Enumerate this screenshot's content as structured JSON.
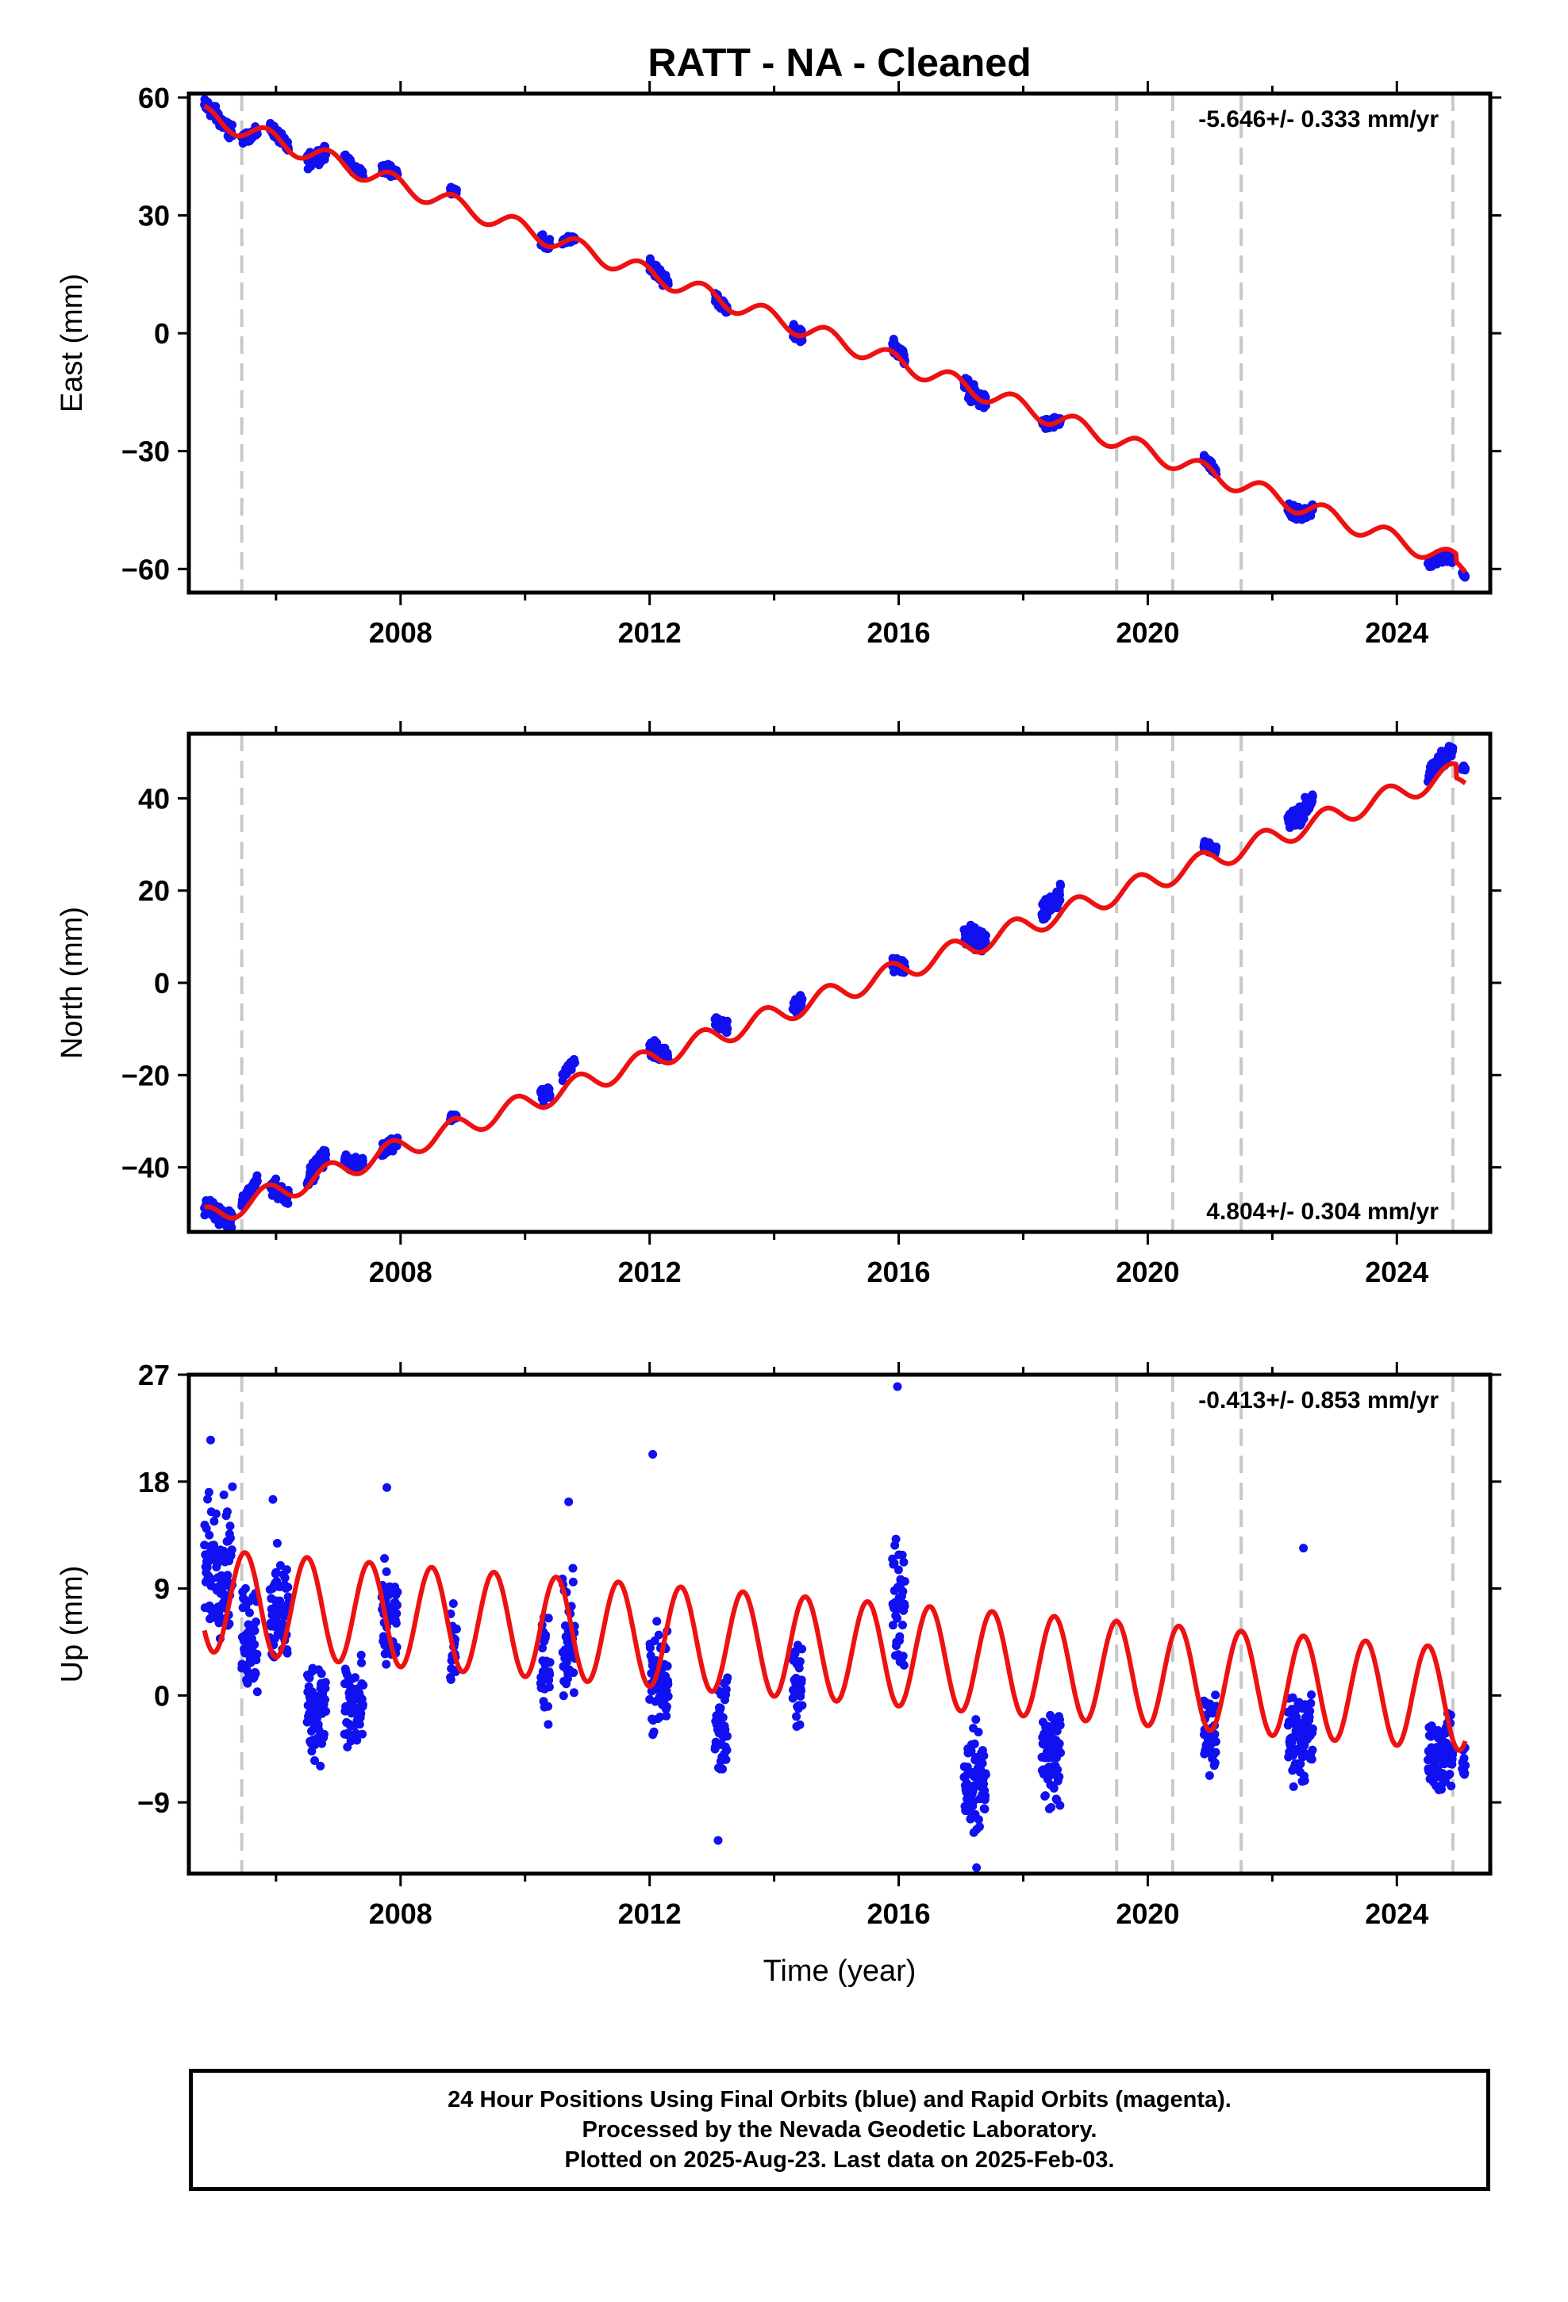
{
  "title": "RATT  - NA - Cleaned",
  "xlabel": "Time (year)",
  "footer": {
    "line1": "24 Hour Positions Using Final Orbits (blue) and Rapid Orbits (magenta).",
    "line2": "Processed by the Nevada Geodetic Laboratory.",
    "line3": "Plotted on 2025-Aug-23. Last data on 2025-Feb-03."
  },
  "colors": {
    "data": "#1010f0",
    "model": "#ee1111",
    "break": "#c8c8c8",
    "frame": "#000000"
  },
  "chart_data": [
    {
      "type": "scatter",
      "name": "east",
      "ylabel": "East (mm)",
      "rate": "-5.646+/- 0.333 mm/yr",
      "rate_position": "top-right",
      "xlim": [
        2004.6,
        2025.5
      ],
      "ylim": [
        -66,
        61
      ],
      "xticks": [
        "2008",
        "2012",
        "2016",
        "2020",
        "2024"
      ],
      "yticks": [
        "60",
        "30",
        "0",
        "−30",
        "−60"
      ],
      "ytick_values": [
        60,
        30,
        0,
        -30,
        -60
      ],
      "breaks": [
        2005.45,
        2019.5,
        2020.4,
        2021.5,
        2024.9
      ],
      "model": {
        "offset": 55.5,
        "rate": -5.646,
        "t0": 2004.85,
        "amp": 2.3,
        "phase": 0.6,
        "steps": [
          {
            "t": 2024.95,
            "dy": -2.0
          }
        ]
      },
      "segments": [
        {
          "t0": 2004.85,
          "t1": 2005.3,
          "y": 55.0,
          "spread": 1.6
        },
        {
          "t0": 2005.45,
          "t1": 2005.7,
          "y": 49.5,
          "spread": 1.0
        },
        {
          "t0": 2005.9,
          "t1": 2006.2,
          "y": 50.5,
          "spread": 1.2
        },
        {
          "t0": 2006.5,
          "t1": 2006.8,
          "y": 44.0,
          "spread": 1.5
        },
        {
          "t0": 2007.1,
          "t1": 2007.4,
          "y": 44.0,
          "spread": 1.0
        },
        {
          "t0": 2007.7,
          "t1": 2007.95,
          "y": 42.5,
          "spread": 1.2
        },
        {
          "t0": 2008.8,
          "t1": 2008.9,
          "y": 37.5,
          "spread": 0.8
        },
        {
          "t0": 2010.25,
          "t1": 2010.4,
          "y": 23.0,
          "spread": 1.5
        },
        {
          "t0": 2010.6,
          "t1": 2010.8,
          "y": 24.0,
          "spread": 0.6
        },
        {
          "t0": 2012.0,
          "t1": 2012.3,
          "y": 16.5,
          "spread": 1.5
        },
        {
          "t0": 2013.05,
          "t1": 2013.25,
          "y": 7.0,
          "spread": 1.2
        },
        {
          "t0": 2014.3,
          "t1": 2014.45,
          "y": 0.5,
          "spread": 1.5
        },
        {
          "t0": 2015.9,
          "t1": 2016.1,
          "y": -3.0,
          "spread": 1.5
        },
        {
          "t0": 2017.05,
          "t1": 2017.4,
          "y": -16.0,
          "spread": 1.8
        },
        {
          "t0": 2018.3,
          "t1": 2018.6,
          "y": -23.0,
          "spread": 1.2
        },
        {
          "t0": 2020.9,
          "t1": 2021.1,
          "y": -33.0,
          "spread": 1.0
        },
        {
          "t0": 2022.25,
          "t1": 2022.65,
          "y": -46.5,
          "spread": 1.5
        },
        {
          "t0": 2024.5,
          "t1": 2024.9,
          "y": -59.0,
          "spread": 1.2
        },
        {
          "t0": 2025.05,
          "t1": 2025.1,
          "y": -62.5,
          "spread": 0.5
        }
      ]
    },
    {
      "type": "scatter",
      "name": "north",
      "ylabel": "North (mm)",
      "rate": "4.804+/- 0.304 mm/yr",
      "rate_position": "bottom-right",
      "xlim": [
        2004.6,
        2025.5
      ],
      "ylim": [
        -54,
        54
      ],
      "xticks": [
        "2008",
        "2012",
        "2016",
        "2020",
        "2024"
      ],
      "yticks": [
        "40",
        "20",
        "0",
        "−20",
        "−40"
      ],
      "ytick_values": [
        40,
        20,
        0,
        -20,
        -40
      ],
      "breaks": [
        2005.45,
        2019.5,
        2020.4,
        2021.5,
        2024.9
      ],
      "model": {
        "offset": -51.0,
        "rate": 4.804,
        "t0": 2004.85,
        "amp": 2.3,
        "phase": 0.6,
        "steps": [
          {
            "t": 2024.95,
            "dy": -3.0
          }
        ]
      },
      "segments": [
        {
          "t0": 2004.85,
          "t1": 2005.3,
          "y": -50.5,
          "spread": 1.6
        },
        {
          "t0": 2005.45,
          "t1": 2005.7,
          "y": -42.5,
          "spread": 0.8
        },
        {
          "t0": 2005.9,
          "t1": 2006.2,
          "y": -45.5,
          "spread": 1.5
        },
        {
          "t0": 2006.5,
          "t1": 2006.8,
          "y": -38.0,
          "spread": 1.5
        },
        {
          "t0": 2007.1,
          "t1": 2007.4,
          "y": -37.5,
          "spread": 1.2
        },
        {
          "t0": 2007.7,
          "t1": 2007.95,
          "y": -35.5,
          "spread": 1.2
        },
        {
          "t0": 2008.8,
          "t1": 2008.9,
          "y": -28.5,
          "spread": 0.6
        },
        {
          "t0": 2010.25,
          "t1": 2010.4,
          "y": -21.5,
          "spread": 1.5
        },
        {
          "t0": 2010.6,
          "t1": 2010.8,
          "y": -15.5,
          "spread": 0.8
        },
        {
          "t0": 2012.0,
          "t1": 2012.3,
          "y": -14.0,
          "spread": 1.5
        },
        {
          "t0": 2013.05,
          "t1": 2013.25,
          "y": -6.5,
          "spread": 1.2
        },
        {
          "t0": 2014.3,
          "t1": 2014.45,
          "y": -2.0,
          "spread": 1.5
        },
        {
          "t0": 2015.9,
          "t1": 2016.1,
          "y": 3.5,
          "spread": 1.5
        },
        {
          "t0": 2017.05,
          "t1": 2017.4,
          "y": 12.0,
          "spread": 2.0
        },
        {
          "t0": 2018.3,
          "t1": 2018.6,
          "y": 21.5,
          "spread": 2.0
        },
        {
          "t0": 2020.9,
          "t1": 2021.1,
          "y": 30.5,
          "spread": 0.8
        },
        {
          "t0": 2022.25,
          "t1": 2022.65,
          "y": 41.5,
          "spread": 1.8
        },
        {
          "t0": 2024.5,
          "t1": 2024.9,
          "y": 50.5,
          "spread": 1.5
        },
        {
          "t0": 2025.05,
          "t1": 2025.1,
          "y": 49.5,
          "spread": 0.5
        }
      ]
    },
    {
      "type": "scatter",
      "name": "up",
      "ylabel": "Up (mm)",
      "rate": "-0.413+/- 0.853 mm/yr",
      "rate_position": "top-right",
      "xlim": [
        2004.6,
        2025.5
      ],
      "ylim": [
        -15,
        27
      ],
      "xticks": [
        "2008",
        "2012",
        "2016",
        "2020",
        "2024"
      ],
      "yticks": [
        "27",
        "18",
        "9",
        "0",
        "−9"
      ],
      "ytick_values": [
        27,
        18,
        9,
        0,
        -9
      ],
      "breaks": [
        2005.45,
        2019.5,
        2020.4,
        2021.5,
        2024.9
      ],
      "model": {
        "offset": 8.0,
        "rate": -0.413,
        "t0": 2004.85,
        "amp": 4.3,
        "phase": 0.25,
        "steps": []
      },
      "segments": [
        {
          "t0": 2004.85,
          "t1": 2005.3,
          "y": 11.0,
          "spread": 4.5
        },
        {
          "t0": 2005.45,
          "t1": 2005.7,
          "y": 5.0,
          "spread": 4.0
        },
        {
          "t0": 2005.9,
          "t1": 2006.2,
          "y": 7.0,
          "spread": 4.0
        },
        {
          "t0": 2006.5,
          "t1": 2006.8,
          "y": -1.0,
          "spread": 3.5
        },
        {
          "t0": 2007.1,
          "t1": 2007.4,
          "y": -1.0,
          "spread": 3.5
        },
        {
          "t0": 2007.7,
          "t1": 2007.95,
          "y": 6.0,
          "spread": 4.0
        },
        {
          "t0": 2008.8,
          "t1": 2008.9,
          "y": 4.0,
          "spread": 2.5
        },
        {
          "t0": 2010.25,
          "t1": 2010.4,
          "y": 2.0,
          "spread": 3.5
        },
        {
          "t0": 2010.6,
          "t1": 2010.8,
          "y": 5.0,
          "spread": 4.0
        },
        {
          "t0": 2012.0,
          "t1": 2012.3,
          "y": 1.0,
          "spread": 4.0
        },
        {
          "t0": 2013.05,
          "t1": 2013.25,
          "y": -3.0,
          "spread": 3.5
        },
        {
          "t0": 2014.3,
          "t1": 2014.45,
          "y": 1.5,
          "spread": 3.0
        },
        {
          "t0": 2015.9,
          "t1": 2016.1,
          "y": 8.0,
          "spread": 4.5
        },
        {
          "t0": 2017.05,
          "t1": 2017.4,
          "y": -7.0,
          "spread": 3.5
        },
        {
          "t0": 2018.3,
          "t1": 2018.6,
          "y": -5.0,
          "spread": 3.5
        },
        {
          "t0": 2020.9,
          "t1": 2021.1,
          "y": -3.5,
          "spread": 3.0
        },
        {
          "t0": 2022.25,
          "t1": 2022.65,
          "y": -3.5,
          "spread": 3.0
        },
        {
          "t0": 2024.5,
          "t1": 2024.9,
          "y": -5.0,
          "spread": 2.5
        },
        {
          "t0": 2025.05,
          "t1": 2025.1,
          "y": -5.5,
          "spread": 1.5
        }
      ],
      "outliers": [
        [
          2015.98,
          26.0
        ],
        [
          2012.05,
          20.3
        ],
        [
          2004.95,
          21.5
        ],
        [
          2007.78,
          17.5
        ],
        [
          2005.95,
          16.5
        ],
        [
          2010.7,
          16.3
        ],
        [
          2013.1,
          -12.2
        ],
        [
          2017.25,
          -14.5
        ],
        [
          2022.5,
          12.4
        ]
      ]
    }
  ]
}
